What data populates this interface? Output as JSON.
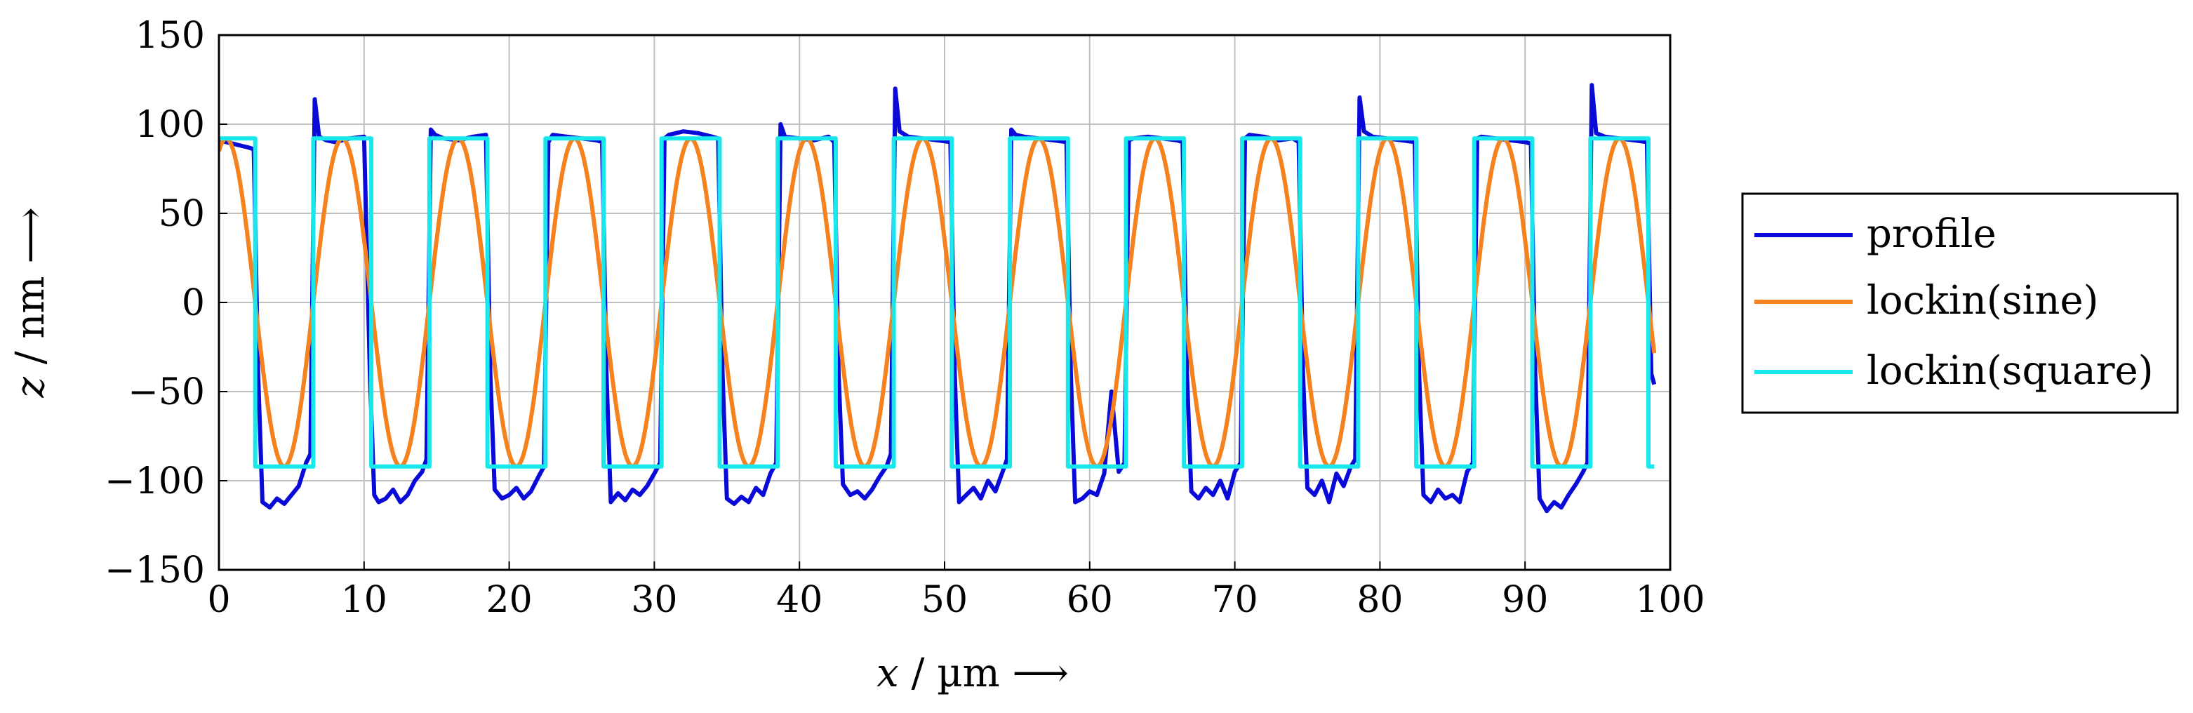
{
  "chart_data": {
    "type": "line",
    "title": "",
    "xlabel_var": "x",
    "xlabel_unit": "µm",
    "ylabel_var": "z",
    "ylabel_unit": "nm",
    "xlim": [
      0,
      100
    ],
    "ylim": [
      -150,
      150
    ],
    "xticks": [
      0,
      10,
      20,
      30,
      40,
      50,
      60,
      70,
      80,
      90,
      100
    ],
    "yticks": [
      -150,
      -100,
      -50,
      0,
      50,
      100,
      150
    ],
    "xtick_labels": [
      "0",
      "10",
      "20",
      "30",
      "40",
      "50",
      "60",
      "70",
      "80",
      "90",
      "100"
    ],
    "ytick_labels": [
      "−150",
      "−100",
      "−50",
      "0",
      "50",
      "100",
      "150"
    ],
    "grid": true,
    "legend_position": "right",
    "series": [
      {
        "name": "profile",
        "color": "#0a0ad8",
        "x": [
          0,
          0.5,
          1,
          1.5,
          2,
          2.4,
          2.7,
          3,
          3.5,
          4,
          4.5,
          5,
          5.5,
          6,
          6.3,
          6.6,
          6.9,
          7.4,
          8,
          9,
          10,
          10.4,
          10.7,
          11,
          11.5,
          12,
          12.5,
          13,
          13.5,
          14,
          14.3,
          14.6,
          14.9,
          15.5,
          16.5,
          17.5,
          18.4,
          18.7,
          19,
          19.5,
          20,
          20.5,
          21,
          21.5,
          22,
          22.4,
          22.7,
          23,
          24,
          25,
          26,
          26.4,
          26.7,
          27,
          27.5,
          28,
          28.5,
          29,
          29.5,
          30,
          30.4,
          30.7,
          31,
          32,
          33,
          34,
          34.4,
          34.7,
          35,
          35.5,
          36,
          36.5,
          37,
          37.5,
          38,
          38.4,
          38.7,
          39,
          40,
          41,
          42,
          42.4,
          42.7,
          43,
          43.5,
          44,
          44.5,
          45,
          45.5,
          46,
          46.3,
          46.6,
          46.9,
          47.5,
          48.5,
          49.5,
          50.4,
          50.7,
          51,
          51.5,
          52,
          52.5,
          53,
          53.5,
          54,
          54.3,
          54.6,
          54.9,
          55.5,
          56.5,
          57.5,
          58.4,
          58.7,
          59,
          59.5,
          60,
          60.5,
          61,
          61.5,
          62,
          62.4,
          62.7,
          63,
          64,
          65,
          66,
          66.4,
          66.7,
          67,
          67.5,
          68,
          68.5,
          69,
          69.5,
          70,
          70.4,
          70.7,
          71,
          72,
          73,
          74,
          74.4,
          74.7,
          75,
          75.5,
          76,
          76.5,
          77,
          77.5,
          78,
          78.3,
          78.6,
          78.9,
          79.5,
          80.5,
          81.5,
          82.4,
          82.7,
          83,
          83.5,
          84,
          84.5,
          85,
          85.5,
          86,
          86.4,
          86.7,
          87,
          88,
          89,
          90,
          90.4,
          90.7,
          91,
          91.5,
          92,
          92.5,
          93,
          93.5,
          94,
          94.3,
          94.6,
          94.9,
          95.5,
          96.5,
          97.5,
          98.4,
          98.7,
          98.9
        ],
        "values": [
          91,
          90,
          89,
          88,
          87,
          86,
          -40,
          -112,
          -115,
          -110,
          -113,
          -108,
          -103,
          -90,
          -85,
          114,
          93,
          91,
          90,
          92,
          93,
          -40,
          -108,
          -112,
          -110,
          -105,
          -112,
          -108,
          -100,
          -95,
          -88,
          97,
          94,
          92,
          91,
          93,
          94,
          -40,
          -105,
          -110,
          -108,
          -104,
          -110,
          -106,
          -98,
          -92,
          90,
          94,
          93,
          92,
          91,
          90,
          -40,
          -112,
          -107,
          -111,
          -105,
          -108,
          -103,
          -96,
          -90,
          92,
          94,
          96,
          95,
          93,
          92,
          -40,
          -110,
          -113,
          -109,
          -112,
          -104,
          -108,
          -96,
          -90,
          100,
          93,
          92,
          91,
          93,
          90,
          -40,
          -102,
          -108,
          -106,
          -110,
          -105,
          -98,
          -92,
          -85,
          120,
          96,
          93,
          92,
          91,
          90,
          -40,
          -112,
          -108,
          -104,
          -110,
          -100,
          -106,
          -95,
          -88,
          97,
          94,
          93,
          92,
          91,
          90,
          -40,
          -112,
          -110,
          -106,
          -108,
          -96,
          -50,
          -95,
          -90,
          91,
          92,
          93,
          92,
          91,
          90,
          -40,
          -106,
          -110,
          -104,
          -108,
          -100,
          -110,
          -95,
          -90,
          92,
          94,
          93,
          91,
          92,
          90,
          -40,
          -104,
          -108,
          -100,
          -112,
          -96,
          -103,
          -92,
          -88,
          115,
          96,
          93,
          92,
          91,
          90,
          -40,
          -108,
          -112,
          -105,
          -110,
          -108,
          -112,
          -95,
          -90,
          92,
          93,
          92,
          91,
          90,
          89,
          -40,
          -110,
          -117,
          -112,
          -115,
          -108,
          -102,
          -95,
          -90,
          122,
          95,
          93,
          92,
          91,
          90,
          -40,
          -46
        ]
      },
      {
        "name": "lockin(sine)",
        "color": "#f5821f",
        "function": "sine",
        "amplitude": 92,
        "period": 8,
        "phase_peak_x": 0.5,
        "x_range": [
          0,
          98.9
        ]
      },
      {
        "name": "lockin(square)",
        "color": "#18e8ec",
        "function": "square",
        "high": 92,
        "low": -92,
        "period": 8,
        "first_fall_x": 2.5,
        "x_range": [
          0,
          98.9
        ]
      }
    ]
  }
}
